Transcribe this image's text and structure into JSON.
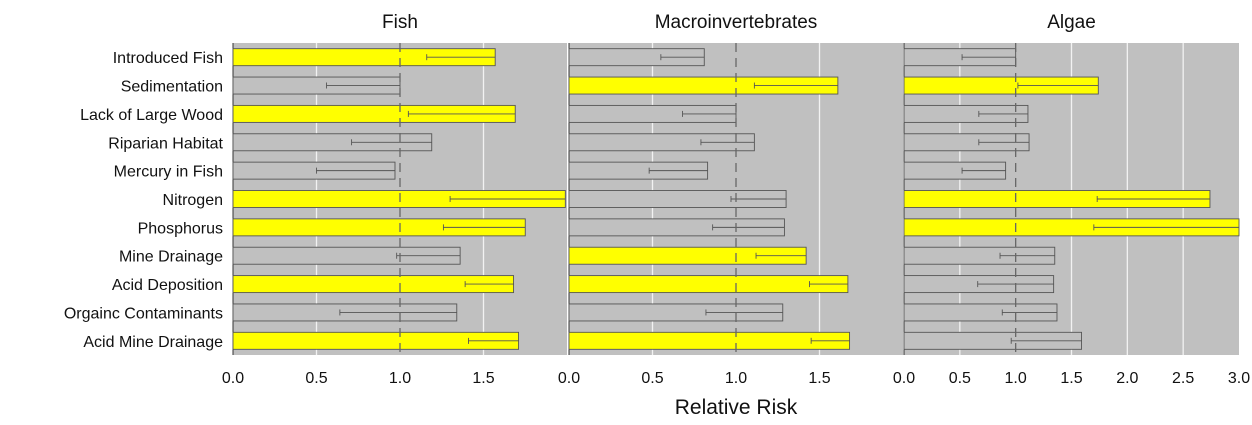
{
  "chart_data": {
    "type": "bar",
    "orientation": "horizontal",
    "shared_xlabel": "Relative Risk",
    "categories": [
      "Introduced Fish",
      "Sedimentation",
      "Lack of Large Wood",
      "Riparian Habitat",
      "Mercury in Fish",
      "Nitrogen",
      "Phosphorus",
      "Mine Drainage",
      "Acid Deposition",
      "Orgainc Contaminants",
      "Acid Mine Drainage"
    ],
    "reference_line": 1.0,
    "colors": {
      "panel_bg": "#c0c0c0",
      "highlight_bar": "#ffff00",
      "normal_bar": "#c0c0c0",
      "bar_edge": "#555555",
      "ref_line": "#666666",
      "grid": "#f2f2f2"
    },
    "panels": [
      {
        "title": "Fish",
        "xlim": [
          0,
          2.0
        ],
        "xticks": [
          0,
          0.5,
          1.0,
          1.5,
          2.0
        ],
        "xtick_labels": [
          "0.0",
          "0.5",
          "1.0",
          "1.5",
          ""
        ],
        "values": [
          1.57,
          1.0,
          1.69,
          1.19,
          0.97,
          1.99,
          1.75,
          1.36,
          1.68,
          1.34,
          1.71
        ],
        "error_low": [
          1.16,
          0.56,
          1.05,
          0.71,
          0.5,
          1.3,
          1.26,
          0.98,
          1.39,
          0.64,
          1.41
        ],
        "highlighted": [
          true,
          false,
          true,
          false,
          false,
          true,
          true,
          false,
          true,
          false,
          true
        ]
      },
      {
        "title": "Macroinvertebrates",
        "xlim": [
          0,
          2.0
        ],
        "xticks": [
          0,
          0.5,
          1.0,
          1.5,
          2.0
        ],
        "xtick_labels": [
          "0.0",
          "0.5",
          "1.0",
          "1.5",
          ""
        ],
        "values": [
          0.81,
          1.61,
          1.0,
          1.11,
          0.83,
          1.3,
          1.29,
          1.42,
          1.67,
          1.28,
          1.68
        ],
        "error_low": [
          0.55,
          1.11,
          0.68,
          0.79,
          0.48,
          0.97,
          0.86,
          1.12,
          1.44,
          0.82,
          1.45
        ],
        "highlighted": [
          false,
          true,
          false,
          false,
          false,
          false,
          false,
          true,
          true,
          false,
          true
        ]
      },
      {
        "title": "Algae",
        "xlim": [
          0,
          3.0
        ],
        "xticks": [
          0,
          0.5,
          1.0,
          1.5,
          2.0,
          2.5,
          3.0
        ],
        "xtick_labels": [
          "0.0",
          "0.5",
          "1.0",
          "1.5",
          "2.0",
          "2.5",
          "3.0"
        ],
        "values": [
          1.0,
          1.74,
          1.11,
          1.12,
          0.91,
          2.74,
          3.01,
          1.35,
          1.34,
          1.37,
          1.59
        ],
        "error_low": [
          0.52,
          1.02,
          0.67,
          0.67,
          0.52,
          1.73,
          1.7,
          0.86,
          0.66,
          0.88,
          0.96
        ],
        "highlighted": [
          false,
          true,
          false,
          false,
          false,
          true,
          true,
          false,
          false,
          false,
          false
        ]
      }
    ]
  }
}
